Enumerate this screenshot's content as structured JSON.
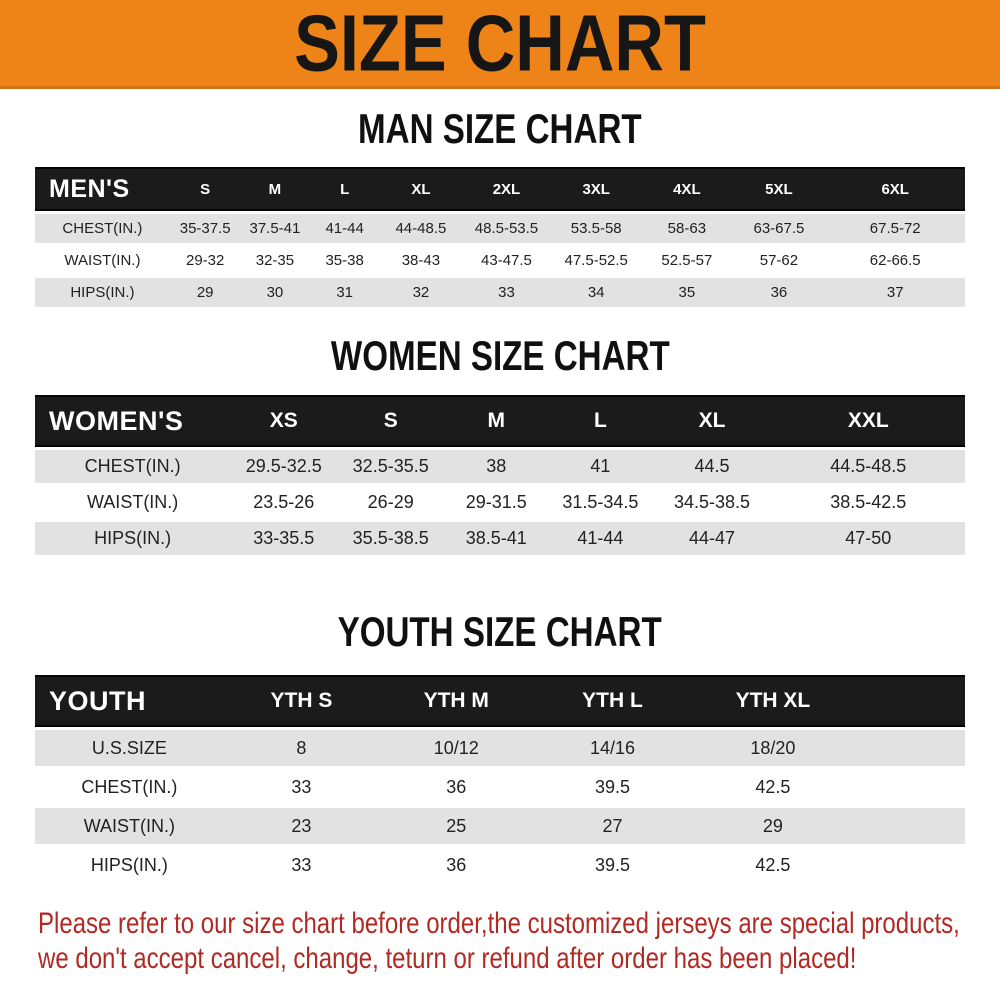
{
  "banner": {
    "title": "SIZE CHART"
  },
  "sections": [
    {
      "id": "man",
      "heading": "MAN SIZE CHART",
      "table": {
        "header_label": "MEN'S",
        "columns": [
          "S",
          "M",
          "L",
          "XL",
          "2XL",
          "3XL",
          "4XL",
          "5XL",
          "6XL"
        ],
        "rows": [
          {
            "label": "CHEST(IN.)",
            "values": [
              "35-37.5",
              "37.5-41",
              "41-44",
              "44-48.5",
              "48.5-53.5",
              "53.5-58",
              "58-63",
              "63-67.5",
              "67.5-72"
            ]
          },
          {
            "label": "WAIST(IN.)",
            "values": [
              "29-32",
              "32-35",
              "35-38",
              "38-43",
              "43-47.5",
              "47.5-52.5",
              "52.5-57",
              "57-62",
              "62-66.5"
            ]
          },
          {
            "label": "HIPS(IN.)",
            "values": [
              "29",
              "30",
              "31",
              "32",
              "33",
              "34",
              "35",
              "36",
              "37"
            ]
          }
        ]
      }
    },
    {
      "id": "women",
      "heading": "WOMEN SIZE CHART",
      "table": {
        "header_label": "WOMEN'S",
        "columns": [
          "XS",
          "S",
          "M",
          "L",
          "XL",
          "XXL"
        ],
        "rows": [
          {
            "label": "CHEST(IN.)",
            "values": [
              "29.5-32.5",
              "32.5-35.5",
              "38",
              "41",
              "44.5",
              "44.5-48.5"
            ]
          },
          {
            "label": "WAIST(IN.)",
            "values": [
              "23.5-26",
              "26-29",
              "29-31.5",
              "31.5-34.5",
              "34.5-38.5",
              "38.5-42.5"
            ]
          },
          {
            "label": "HIPS(IN.)",
            "values": [
              "33-35.5",
              "35.5-38.5",
              "38.5-41",
              "41-44",
              "44-47",
              "47-50"
            ]
          }
        ]
      }
    },
    {
      "id": "youth",
      "heading": "YOUTH SIZE CHART",
      "table": {
        "header_label": "YOUTH",
        "columns": [
          "YTH S",
          "YTH M",
          "YTH L",
          "YTH XL"
        ],
        "rows": [
          {
            "label": "U.S.SIZE",
            "values": [
              "8",
              "10/12",
              "14/16",
              "18/20"
            ]
          },
          {
            "label": "CHEST(IN.)",
            "values": [
              "33",
              "36",
              "39.5",
              "42.5"
            ]
          },
          {
            "label": "WAIST(IN.)",
            "values": [
              "23",
              "25",
              "27",
              "29"
            ]
          },
          {
            "label": "HIPS(IN.)",
            "values": [
              "33",
              "36",
              "39.5",
              "42.5"
            ]
          }
        ]
      }
    }
  ],
  "footer_note": {
    "line1": "Please refer to our size chart before order,the customized jerseys are special products,",
    "line2": "we don't accept cancel, change, teturn or refund after order has been placed!"
  },
  "colors": {
    "banner_orange": "#ee8318",
    "header_bar_black": "#1b1b1b",
    "row_stripe_gray": "#e2e2e2",
    "note_red": "#b02a23"
  }
}
